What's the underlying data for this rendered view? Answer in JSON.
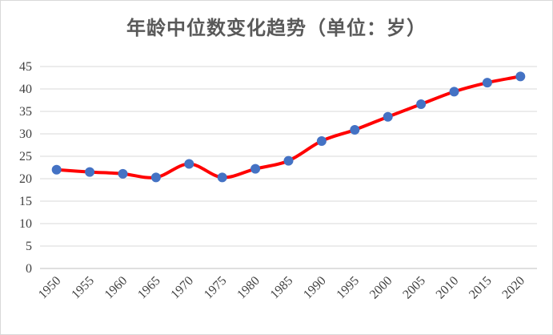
{
  "chart_data": {
    "type": "line",
    "title": "年龄中位数变化趋势（单位：岁）",
    "xlabel": "",
    "ylabel": "",
    "categories": [
      "1950",
      "1955",
      "1960",
      "1965",
      "1970",
      "1975",
      "1980",
      "1985",
      "1990",
      "1995",
      "2000",
      "2005",
      "2010",
      "2015",
      "2020"
    ],
    "series": [
      {
        "values": [
          22.0,
          21.5,
          21.1,
          20.3,
          23.3,
          20.3,
          22.2,
          24.0,
          28.4,
          30.9,
          33.8,
          36.6,
          39.4,
          41.4,
          42.8
        ],
        "line_color": "#ff0000",
        "marker_color": "#4472c4"
      }
    ],
    "ylim": [
      0,
      45
    ],
    "yticks": [
      "0",
      "5",
      "10",
      "15",
      "20",
      "25",
      "30",
      "35",
      "40",
      "45"
    ],
    "grid": true,
    "legend": "none"
  }
}
